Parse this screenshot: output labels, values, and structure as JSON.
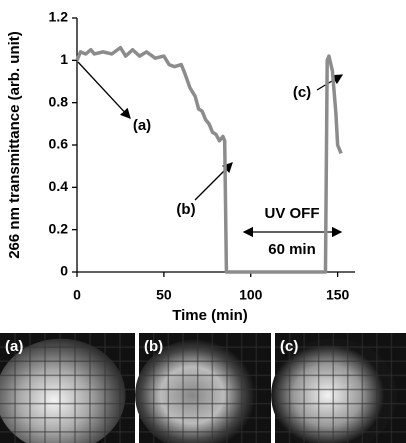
{
  "chart_data": {
    "type": "line",
    "x_label": "Time (min)",
    "y_label": "266 nm transmittance (arb. unit)",
    "x": [
      0,
      2,
      5,
      8,
      10,
      15,
      20,
      25,
      28,
      32,
      36,
      40,
      45,
      50,
      53,
      56,
      60,
      62,
      65,
      68,
      70,
      72,
      74,
      76,
      78,
      80,
      82,
      84,
      85,
      86,
      143,
      144,
      145,
      147,
      149,
      150,
      152
    ],
    "series": [
      {
        "color": "#8c8c8c",
        "values": [
          1.0,
          1.04,
          1.03,
          1.05,
          1.03,
          1.04,
          1.03,
          1.06,
          1.02,
          1.05,
          1.02,
          1.04,
          1.01,
          1.02,
          0.98,
          0.97,
          0.98,
          0.94,
          0.87,
          0.83,
          0.77,
          0.76,
          0.72,
          0.7,
          0.66,
          0.65,
          0.62,
          0.64,
          0.62,
          0,
          0,
          1.0,
          1.02,
          0.95,
          0.75,
          0.6,
          0.56
        ]
      }
    ],
    "xlim": [
      0,
      160
    ],
    "xticks": [
      0,
      50,
      100,
      150
    ],
    "ylim": [
      0,
      1.2
    ],
    "yticks": [
      0,
      0.2,
      0.4,
      0.6,
      0.8,
      1,
      1.2
    ],
    "annotations": [
      "(a)",
      "(b)",
      "(c)",
      "UV OFF",
      "60 min"
    ]
  },
  "images": [
    {
      "label": "(a)"
    },
    {
      "label": "(b)"
    },
    {
      "label": "(c)"
    }
  ]
}
